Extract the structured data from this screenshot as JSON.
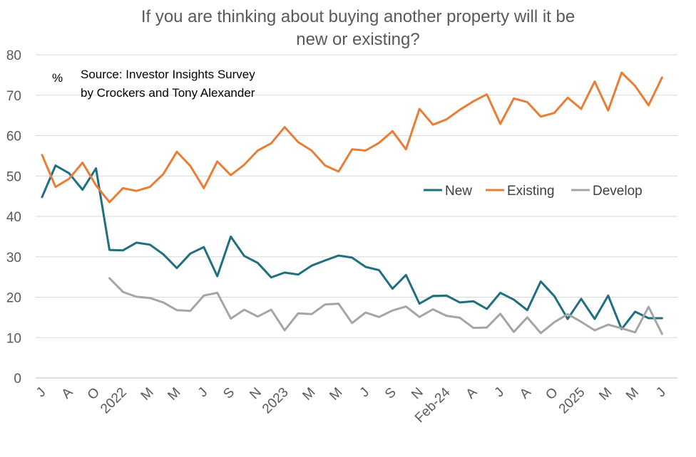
{
  "chart_data": {
    "type": "line",
    "title_line1": "If you are thinking about buying another property will it be",
    "title_line2": "new or existing?",
    "unit_label": "%",
    "annotation_line1": "Source: Investor Insights Survey",
    "annotation_line2": "by Crockers and Tony Alexander",
    "xlabel": "",
    "ylabel": "",
    "ylim": [
      0,
      80
    ],
    "yticks": [
      "0",
      "10",
      "20",
      "30",
      "40",
      "50",
      "60",
      "70",
      "80"
    ],
    "grid": true,
    "legend_position": "right",
    "x_tick_labels": [
      "J",
      "A",
      "O",
      "2022",
      "M",
      "M",
      "J",
      "S",
      "N",
      "2023",
      "M",
      "M",
      "J",
      "S",
      "N",
      "Feb-24",
      "A",
      "J",
      "A",
      "O",
      "2025",
      "M",
      "M",
      "J"
    ],
    "series": [
      {
        "name": "New",
        "color": "#1f6f7f",
        "values": [
          44.8,
          52.6,
          50.7,
          46.6,
          51.9,
          31.7,
          31.6,
          33.5,
          33.0,
          30.6,
          27.2,
          30.8,
          32.4,
          25.2,
          35.0,
          30.2,
          28.5,
          24.9,
          26.1,
          25.6,
          27.8,
          29.1,
          30.3,
          29.8,
          27.5,
          26.7,
          22.1,
          25.5,
          18.4,
          20.3,
          20.4,
          18.7,
          19.0,
          17.1,
          21.1,
          19.4,
          16.8,
          23.9,
          20.3,
          14.6,
          19.6,
          14.6,
          20.4,
          12.1,
          16.4,
          14.8,
          14.8
        ]
      },
      {
        "name": "Existing",
        "color": "#e87e35",
        "values": [
          55.2,
          47.3,
          49.3,
          53.3,
          47.7,
          43.5,
          47.0,
          46.3,
          47.3,
          50.5,
          56.0,
          52.5,
          47.0,
          53.6,
          50.2,
          52.8,
          56.3,
          58.1,
          62.1,
          58.4,
          56.3,
          52.6,
          51.1,
          56.6,
          56.3,
          58.2,
          61.1,
          56.6,
          66.6,
          62.7,
          64.0,
          66.4,
          68.5,
          70.2,
          62.9,
          69.2,
          68.3,
          64.7,
          65.6,
          69.4,
          66.6,
          73.4,
          66.2,
          75.6,
          72.3,
          67.5,
          74.4
        ]
      },
      {
        "name": "Develop",
        "color": "#a5a5a5",
        "values": [
          null,
          null,
          null,
          null,
          null,
          24.7,
          21.3,
          20.1,
          19.8,
          18.7,
          16.8,
          16.6,
          20.4,
          21.1,
          14.7,
          16.9,
          15.2,
          16.9,
          11.8,
          16.0,
          15.8,
          18.2,
          18.4,
          13.6,
          16.2,
          15.1,
          16.7,
          17.7,
          15.1,
          17.0,
          15.4,
          14.9,
          12.4,
          12.5,
          15.9,
          11.4,
          15.0,
          11.1,
          13.8,
          15.8,
          13.9,
          11.8,
          13.2,
          12.3,
          11.3,
          17.6,
          10.9
        ]
      }
    ]
  }
}
